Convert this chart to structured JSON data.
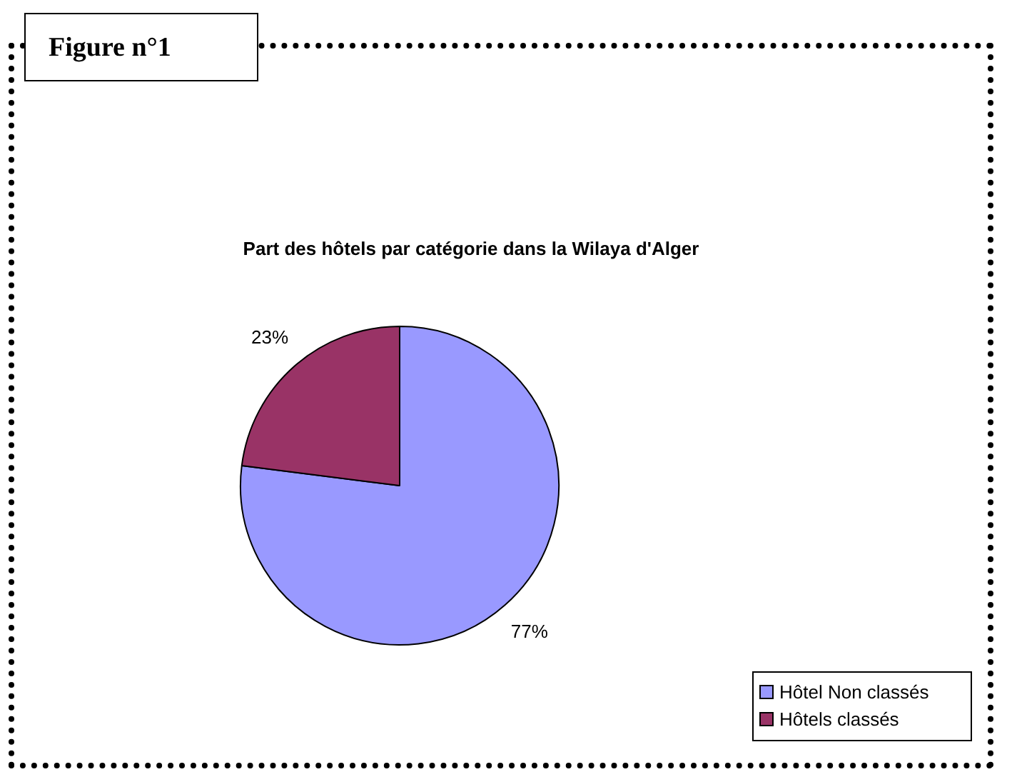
{
  "chart_data": {
    "type": "pie",
    "title": "Part des hôtels par catégorie dans la Wilaya d'Alger",
    "categories": [
      "Hôtel Non classés",
      "Hôtels classés"
    ],
    "values": [
      77,
      23
    ],
    "colors": [
      "#9999ff",
      "#993366"
    ],
    "value_labels": [
      "77%",
      "23%"
    ],
    "legend": "bottom right",
    "annotations": [
      "Figure n°1"
    ]
  }
}
